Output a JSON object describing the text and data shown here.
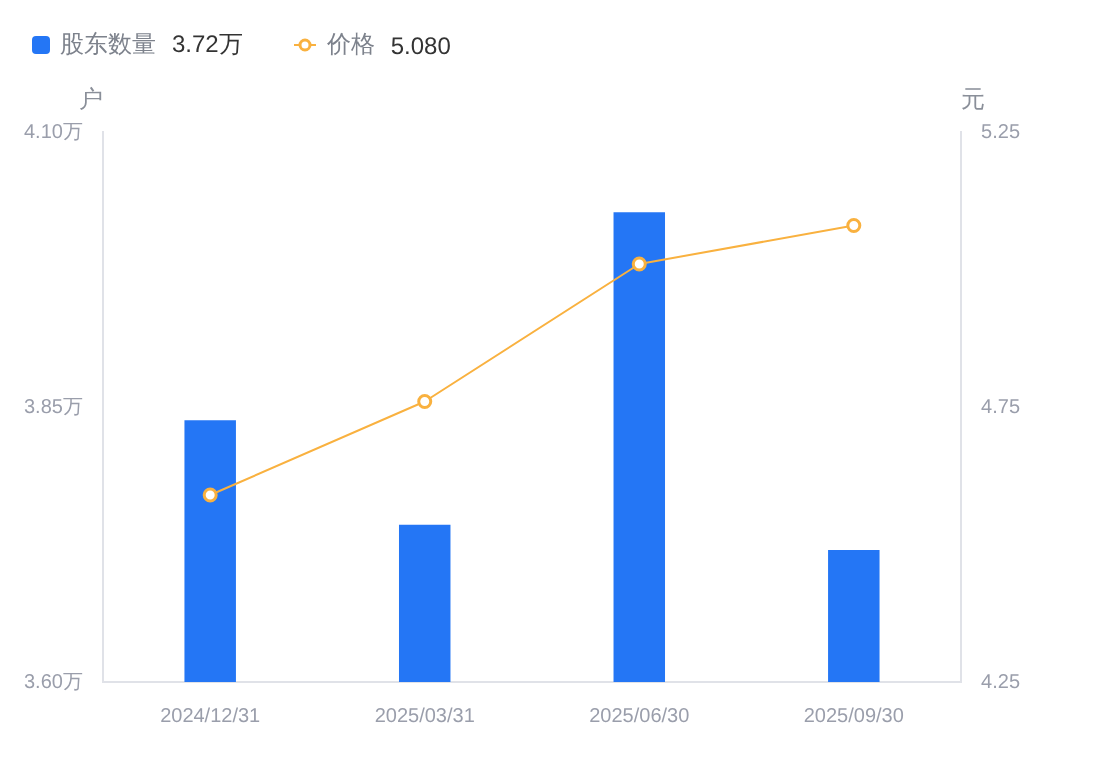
{
  "chart_data": {
    "type": "bar",
    "categories": [
      "2024/12/31",
      "2025/03/31",
      "2025/06/30",
      "2025/09/30"
    ],
    "series": [
      {
        "name": "股东数量",
        "color": "#2476f5",
        "values": [
          3.838,
          3.743,
          4.027,
          3.72
        ]
      },
      {
        "name": "价格",
        "type": "line",
        "axis": "y2",
        "color": "#f9b13f",
        "marker": "circle",
        "values": [
          4.59,
          4.76,
          5.01,
          5.08
        ]
      }
    ],
    "annotations": [
      "3.72万",
      "5.080"
    ],
    "ylabel": "户",
    "y2label": "元",
    "ylim": [
      3.6,
      4.1
    ],
    "yticks": [
      {
        "value": 3.6,
        "label": "3.60万"
      },
      {
        "value": 3.85,
        "label": "3.85万"
      },
      {
        "value": 4.1,
        "label": "4.10万"
      }
    ],
    "y2lim": [
      4.25,
      5.25
    ],
    "y2ticks": [
      4.25,
      4.75,
      5.25
    ],
    "grid": false,
    "legend": "top left"
  }
}
